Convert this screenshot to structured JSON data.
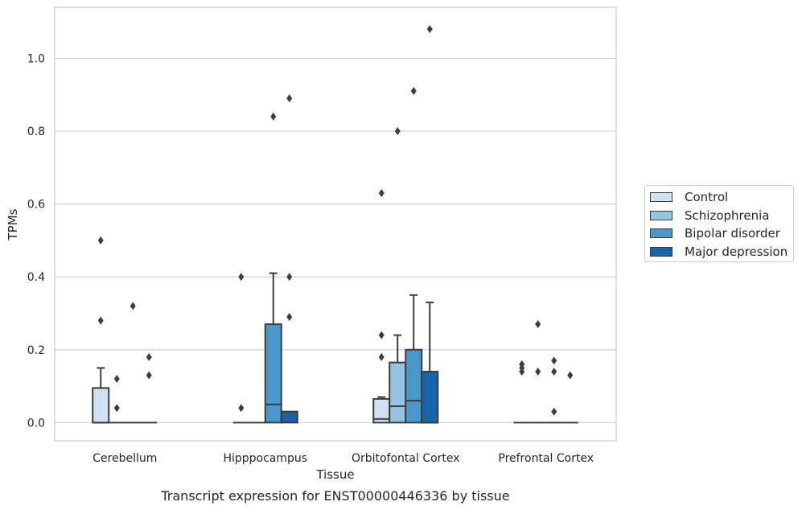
{
  "chart_data": {
    "type": "box",
    "title": "Transcript expression for ENST00000446336 by tissue",
    "xlabel": "Tissue",
    "ylabel": "TPMs",
    "ylim": [
      -0.05,
      1.14
    ],
    "yticks": [
      "0.0",
      "0.2",
      "0.4",
      "0.6",
      "0.8",
      "1.0"
    ],
    "grid": "horizontal",
    "legend_position": "right",
    "categories": [
      "Cerebellum",
      "Hipppocampus",
      "Orbitofontal Cortex",
      "Prefrontal Cortex"
    ],
    "series": [
      {
        "name": "Control",
        "color": "#d0e1f2",
        "boxes": [
          {
            "q1": 0.0,
            "median": 0.0,
            "q3": 0.095,
            "whisker_low": 0.0,
            "whisker_high": 0.15,
            "outliers": [
              0.5,
              0.28
            ]
          },
          {
            "q1": 0.0,
            "median": 0.0,
            "q3": 0.0,
            "whisker_low": 0.0,
            "whisker_high": 0.0,
            "outliers": [
              0.4,
              0.04
            ]
          },
          {
            "q1": 0.0,
            "median": 0.01,
            "q3": 0.065,
            "whisker_low": 0.0,
            "whisker_high": 0.07,
            "outliers": [
              0.63,
              0.24,
              0.18
            ]
          },
          {
            "q1": 0.0,
            "median": 0.0,
            "q3": 0.0,
            "whisker_low": 0.0,
            "whisker_high": 0.0,
            "outliers": [
              0.16,
              0.15,
              0.14
            ]
          }
        ]
      },
      {
        "name": "Schizophrenia",
        "color": "#94c4df",
        "boxes": [
          {
            "q1": 0.0,
            "median": 0.0,
            "q3": 0.0,
            "whisker_low": 0.0,
            "whisker_high": 0.0,
            "outliers": [
              0.12,
              0.04
            ]
          },
          {
            "q1": 0.0,
            "median": 0.0,
            "q3": 0.0,
            "whisker_low": 0.0,
            "whisker_high": 0.0,
            "outliers": []
          },
          {
            "q1": 0.0,
            "median": 0.045,
            "q3": 0.165,
            "whisker_low": 0.0,
            "whisker_high": 0.24,
            "outliers": [
              0.8
            ]
          },
          {
            "q1": 0.0,
            "median": 0.0,
            "q3": 0.0,
            "whisker_low": 0.0,
            "whisker_high": 0.0,
            "outliers": [
              0.27,
              0.14
            ]
          }
        ]
      },
      {
        "name": "Bipolar disorder",
        "color": "#4a98c9",
        "boxes": [
          {
            "q1": 0.0,
            "median": 0.0,
            "q3": 0.0,
            "whisker_low": 0.0,
            "whisker_high": 0.0,
            "outliers": [
              0.32
            ]
          },
          {
            "q1": 0.0,
            "median": 0.05,
            "q3": 0.27,
            "whisker_low": 0.0,
            "whisker_high": 0.41,
            "outliers": [
              0.84
            ]
          },
          {
            "q1": 0.0,
            "median": 0.06,
            "q3": 0.2,
            "whisker_low": 0.0,
            "whisker_high": 0.35,
            "outliers": [
              0.91
            ]
          },
          {
            "q1": 0.0,
            "median": 0.0,
            "q3": 0.0,
            "whisker_low": 0.0,
            "whisker_high": 0.0,
            "outliers": [
              0.17,
              0.14,
              0.03
            ]
          }
        ]
      },
      {
        "name": "Major depression",
        "color": "#1764ab",
        "boxes": [
          {
            "q1": 0.0,
            "median": 0.0,
            "q3": 0.0,
            "whisker_low": 0.0,
            "whisker_high": 0.0,
            "outliers": [
              0.18,
              0.13
            ]
          },
          {
            "q1": 0.0,
            "median": 0.03,
            "q3": 0.03,
            "whisker_low": 0.0,
            "whisker_high": 0.03,
            "outliers": [
              0.89,
              0.4,
              0.29
            ]
          },
          {
            "q1": 0.0,
            "median": 0.0,
            "q3": 0.14,
            "whisker_low": 0.0,
            "whisker_high": 0.33,
            "outliers": [
              1.08
            ]
          },
          {
            "q1": 0.0,
            "median": 0.0,
            "q3": 0.0,
            "whisker_low": 0.0,
            "whisker_high": 0.0,
            "outliers": [
              0.13
            ]
          }
        ]
      }
    ]
  }
}
